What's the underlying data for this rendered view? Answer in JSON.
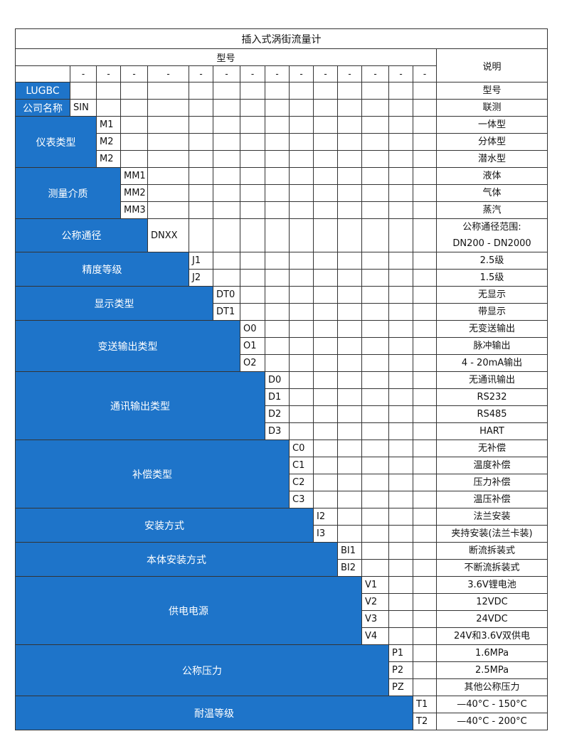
{
  "title": "插入式涡街流量计",
  "header": {
    "model": "型号",
    "description": "说明",
    "dashes": [
      "-",
      "-",
      "-",
      "-",
      "-",
      "-",
      "-",
      "-",
      "-",
      "-",
      "-",
      "-",
      "-",
      "-"
    ]
  },
  "colors": {
    "category_bg": "#1e74c9",
    "category_text": "#ffffff",
    "border": "#333333"
  },
  "categories": [
    {
      "label": "LUGBC",
      "rows": [
        {
          "code": "",
          "desc": [
            "型号"
          ]
        }
      ]
    },
    {
      "label": "公司名称",
      "rows": [
        {
          "code": "SIN",
          "desc": [
            "联测"
          ]
        }
      ]
    },
    {
      "label": "仪表类型",
      "rows": [
        {
          "code": "M1",
          "desc": [
            "一体型"
          ]
        },
        {
          "code": "M2",
          "desc": [
            "分体型"
          ]
        },
        {
          "code": "M2",
          "desc": [
            "潜水型"
          ]
        }
      ]
    },
    {
      "label": "测量介质",
      "rows": [
        {
          "code": "MM1",
          "desc": [
            "液体"
          ]
        },
        {
          "code": "MM2",
          "desc": [
            "气体"
          ]
        },
        {
          "code": "MM3",
          "desc": [
            "蒸汽"
          ]
        }
      ]
    },
    {
      "label": "公称通径",
      "rows": [
        {
          "code": "DNXX",
          "desc": [
            "公称通径范围:",
            "DN200 - DN2000"
          ]
        }
      ]
    },
    {
      "label": "精度等级",
      "rows": [
        {
          "code": "J1",
          "desc": [
            "2.5级"
          ]
        },
        {
          "code": "J2",
          "desc": [
            "1.5级"
          ]
        }
      ]
    },
    {
      "label": "显示类型",
      "rows": [
        {
          "code": "DT0",
          "desc": [
            "无显示"
          ]
        },
        {
          "code": "DT1",
          "desc": [
            "带显示"
          ]
        }
      ]
    },
    {
      "label": "变送输出类型",
      "rows": [
        {
          "code": "O0",
          "desc": [
            "无变送输出"
          ]
        },
        {
          "code": "O1",
          "desc": [
            "脉冲输出"
          ]
        },
        {
          "code": "O2",
          "desc": [
            "4 - 20mA输出"
          ]
        }
      ]
    },
    {
      "label": "通讯输出类型",
      "rows": [
        {
          "code": "D0",
          "desc": [
            "无通讯输出"
          ]
        },
        {
          "code": "D1",
          "desc": [
            "RS232"
          ]
        },
        {
          "code": "D2",
          "desc": [
            "RS485"
          ]
        },
        {
          "code": "D3",
          "desc": [
            "HART"
          ]
        }
      ]
    },
    {
      "label": "补偿类型",
      "rows": [
        {
          "code": "C0",
          "desc": [
            "无补偿"
          ]
        },
        {
          "code": "C1",
          "desc": [
            "温度补偿"
          ]
        },
        {
          "code": "C2",
          "desc": [
            "压力补偿"
          ]
        },
        {
          "code": "C3",
          "desc": [
            "温压补偿"
          ]
        }
      ]
    },
    {
      "label": "安装方式",
      "rows": [
        {
          "code": "I2",
          "desc": [
            "法兰安装"
          ]
        },
        {
          "code": "I3",
          "desc": [
            "夹持安装(法兰卡装)"
          ]
        }
      ]
    },
    {
      "label": "本体安装方式",
      "rows": [
        {
          "code": "BI1",
          "desc": [
            "断流拆装式"
          ]
        },
        {
          "code": "BI2",
          "desc": [
            "不断流拆装式"
          ]
        }
      ]
    },
    {
      "label": "供电电源",
      "rows": [
        {
          "code": "V1",
          "desc": [
            "3.6V锂电池"
          ]
        },
        {
          "code": "V2",
          "desc": [
            "12VDC"
          ]
        },
        {
          "code": "V3",
          "desc": [
            "24VDC"
          ]
        },
        {
          "code": "V4",
          "desc": [
            "24V和3.6V双供电"
          ]
        }
      ]
    },
    {
      "label": "公称压力",
      "rows": [
        {
          "code": "P1",
          "desc": [
            "1.6MPa"
          ]
        },
        {
          "code": "P2",
          "desc": [
            "2.5MPa"
          ]
        },
        {
          "code": "PZ",
          "desc": [
            "其他公称压力"
          ]
        }
      ]
    },
    {
      "label": "耐温等级",
      "rows": [
        {
          "code": "T1",
          "desc": [
            "—40°C - 150°C"
          ]
        },
        {
          "code": "T2",
          "desc": [
            "—40°C - 200°C"
          ]
        }
      ]
    }
  ]
}
